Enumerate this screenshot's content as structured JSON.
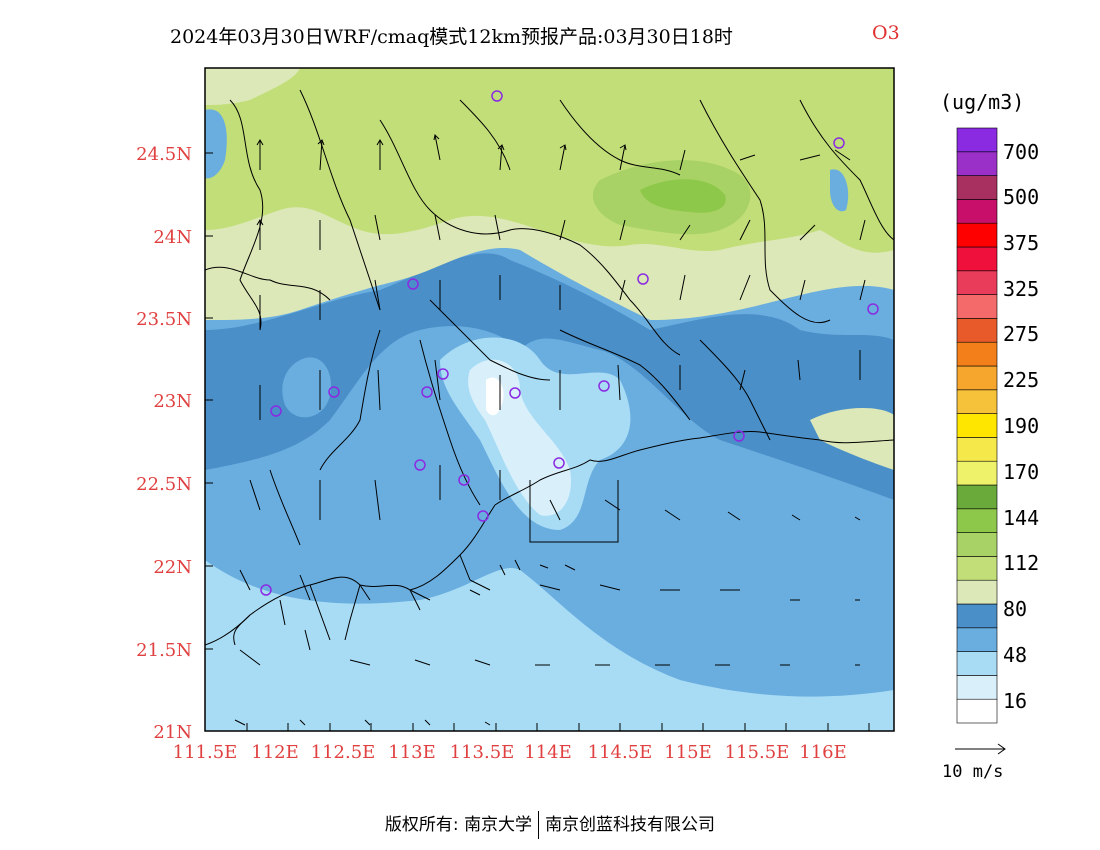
{
  "title": {
    "main": "2024年03月30日WRF/cmaq模式12km预报产品:03月30日18时",
    "pollutant": "O3"
  },
  "colorbar": {
    "unit": "(ug/m3)",
    "labels": [
      "16",
      "48",
      "80",
      "112",
      "144",
      "170",
      "190",
      "225",
      "275",
      "325",
      "375",
      "500",
      "700"
    ],
    "colors": [
      "#ffffff",
      "#d9f0fb",
      "#a8dcf5",
      "#6aaee0",
      "#4a8fc8",
      "#dde8b8",
      "#c2de78",
      "#a8d265",
      "#8ec84a",
      "#6aaa3a",
      "#eef26a",
      "#f4e84a",
      "#ffe600",
      "#f5c23a",
      "#f6a62c",
      "#f27f1a",
      "#e85a2a",
      "#f46a6a",
      "#e83c5a",
      "#f0103c",
      "#ff0000",
      "#c8106a",
      "#a83060",
      "#9b30c8",
      "#8a2be2"
    ]
  },
  "axes": {
    "lon_labels": [
      "111.5E",
      "112E",
      "112.5E",
      "113E",
      "113.5E",
      "114E",
      "114.5E",
      "115E",
      "115.5E",
      "116E"
    ],
    "lat_labels": [
      "24.5N",
      "24N",
      "23.5N",
      "23N",
      "22.5N",
      "22N",
      "21.5N",
      "21N"
    ]
  },
  "wind_reference": "10 m/s",
  "copyright": {
    "owner_label": "版权所有:",
    "owner1": "南京大学",
    "owner2": "南京创蓝科技有限公司"
  }
}
